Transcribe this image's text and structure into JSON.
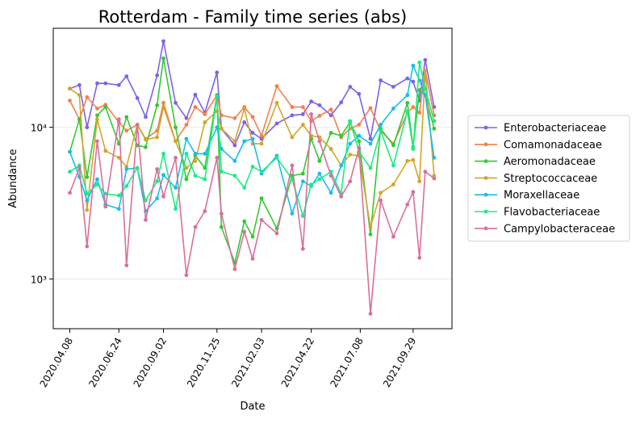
{
  "chart_data": {
    "type": "line",
    "title": "Rotterdam - Family time series (abs)",
    "xlabel": "Date",
    "ylabel": "Abundance",
    "log_y": true,
    "grid": true,
    "legend": "right",
    "x": [
      "2020.04.08",
      "2020.04.23",
      "2020.05.05",
      "2020.05.21",
      "2020.06.03",
      "2020.06.24",
      "2020.07.06",
      "2020.07.23",
      "2020.08.05",
      "2020.08.23",
      "2020.09.02",
      "2020.09.21",
      "2020.10.08",
      "2020.10.22",
      "2020.11.06",
      "2020.11.25",
      "2020.12.02",
      "2020.12.23",
      "2021.01.07",
      "2021.01.20",
      "2021.02.03",
      "2021.02.27",
      "2021.03.23",
      "2021.04.09",
      "2021.04.22",
      "2021.05.05",
      "2021.05.23",
      "2021.06.08",
      "2021.06.22",
      "2021.07.06",
      "2021.07.24",
      "2021.08.09",
      "2021.08.29",
      "2021.09.20",
      "2021.09.29",
      "2021.10.09",
      "2021.10.18",
      "2021.11.01"
    ],
    "xlim": [
      "2020.03.13",
      "2021.11.29"
    ],
    "xticks": [
      "2020.04.08",
      "2020.06.24",
      "2020.09.02",
      "2020.11.25",
      "2021.02.03",
      "2021.04.22",
      "2021.07.08",
      "2021.09.29"
    ],
    "ylim": [
      470,
      45000
    ],
    "yticks": [
      {
        "value": 1000,
        "label": "10³"
      },
      {
        "value": 10000,
        "label": "10⁴"
      }
    ],
    "series": [
      {
        "name": "Enterobacteriaceae",
        "color": "#7f62e6",
        "values": [
          18000,
          19000,
          10000,
          19500,
          19500,
          19000,
          21700,
          15600,
          11700,
          22000,
          37000,
          14500,
          11500,
          16400,
          12500,
          23000,
          9800,
          7600,
          10800,
          9200,
          8400,
          10600,
          12000,
          12200,
          14800,
          14000,
          12000,
          14600,
          18500,
          16600,
          8400,
          20400,
          18500,
          21000,
          20000,
          15000,
          27800,
          13600
        ]
      },
      {
        "name": "Comamonadaceae",
        "color": "#f2814f",
        "values": [
          15000,
          11300,
          15800,
          13300,
          14100,
          10800,
          9500,
          10400,
          8400,
          9500,
          14500,
          8100,
          10400,
          13600,
          12200,
          16300,
          12000,
          11500,
          13600,
          11700,
          8800,
          18700,
          13600,
          13600,
          11000,
          11900,
          13100,
          8600,
          9800,
          10400,
          13400,
          9500,
          7800,
          12500,
          13600,
          12500,
          23700,
          12000
        ]
      },
      {
        "name": "Aeromonadaceae",
        "color": "#34c934",
        "values": [
          6900,
          11300,
          4700,
          12000,
          13600,
          7800,
          11700,
          7600,
          7400,
          14000,
          28500,
          10000,
          4550,
          6500,
          5400,
          16300,
          2200,
          1280,
          2400,
          1900,
          3400,
          2150,
          4800,
          4950,
          8400,
          6000,
          9200,
          8800,
          10800,
          8100,
          1970,
          9800,
          7600,
          14500,
          7400,
          17600,
          16300,
          9800
        ]
      },
      {
        "name": "Streptococcaceae",
        "color": "#d3a52b",
        "values": [
          18000,
          16300,
          2850,
          11300,
          7000,
          6300,
          5500,
          10400,
          8300,
          8600,
          13600,
          8100,
          5400,
          6000,
          10800,
          12800,
          9800,
          8100,
          13300,
          7800,
          7800,
          14500,
          8600,
          10400,
          8800,
          8600,
          7200,
          5600,
          6600,
          6500,
          2200,
          3700,
          4200,
          6000,
          6100,
          4400,
          23700,
          4800
        ]
      },
      {
        "name": "Moraxellaceae",
        "color": "#17bdef",
        "values": [
          6900,
          4700,
          3300,
          4550,
          3100,
          2900,
          5300,
          5400,
          2800,
          3400,
          4850,
          4000,
          8400,
          6700,
          6700,
          10000,
          7200,
          6000,
          8100,
          8400,
          4950,
          6500,
          2700,
          4400,
          4100,
          4950,
          3700,
          5600,
          7800,
          8800,
          7800,
          10400,
          13300,
          16300,
          25500,
          20400,
          16300,
          6300
        ]
      },
      {
        "name": "Flavobacteriaceae",
        "color": "#1deb84",
        "values": [
          5100,
          5600,
          3650,
          4200,
          3650,
          3550,
          4100,
          5400,
          3300,
          4400,
          6700,
          2900,
          6700,
          4800,
          4550,
          16000,
          5100,
          4800,
          4000,
          5500,
          5100,
          6300,
          4550,
          2600,
          4200,
          4550,
          5100,
          3650,
          11000,
          6900,
          5400,
          9500,
          5600,
          12800,
          7200,
          26800,
          18000,
          11000
        ]
      },
      {
        "name": "Campylobacteraceae",
        "color": "#d8709c",
        "values": [
          3700,
          5400,
          1640,
          8100,
          3000,
          11300,
          1230,
          10400,
          2450,
          5300,
          3500,
          6300,
          1060,
          2200,
          2800,
          6300,
          2700,
          1160,
          2050,
          1360,
          2450,
          2000,
          5600,
          1580,
          12200,
          8100,
          4800,
          3500,
          4400,
          7300,
          590,
          3300,
          1900,
          3100,
          3750,
          1380,
          5100,
          4600
        ]
      }
    ]
  }
}
